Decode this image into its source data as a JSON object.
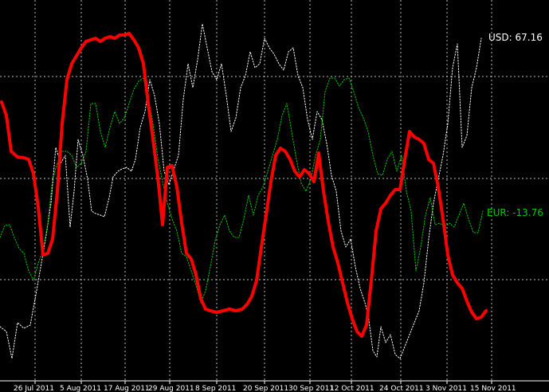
{
  "chart_data": {
    "type": "line",
    "x_tick_labels": [
      "26 Jul 2011",
      "5 Aug 2011",
      "17 Aug 2011",
      "29 Aug 2011",
      "8 Sep 2011",
      "20 Sep 2011",
      "30 Sep 2011",
      "12 Oct 2011",
      "24 Oct 2011",
      "3 Nov 2011",
      "15 Nov 2011"
    ],
    "grid": true,
    "background": "#000000",
    "series": [
      {
        "name": "USD",
        "label": "USD: 67.16",
        "last_value": 67.16,
        "color": "#ffffff",
        "style": "dotted",
        "points": [
          [
            0,
            410
          ],
          [
            8,
            416
          ],
          [
            15,
            450
          ],
          [
            22,
            405
          ],
          [
            30,
            412
          ],
          [
            38,
            408
          ],
          [
            45,
            370
          ],
          [
            52,
            330
          ],
          [
            58,
            295
          ],
          [
            64,
            255
          ],
          [
            70,
            185
          ],
          [
            76,
            205
          ],
          [
            82,
            195
          ],
          [
            88,
            285
          ],
          [
            93,
            240
          ],
          [
            98,
            175
          ],
          [
            104,
            195
          ],
          [
            110,
            225
          ],
          [
            115,
            265
          ],
          [
            120,
            268
          ],
          [
            126,
            270
          ],
          [
            131,
            272
          ],
          [
            137,
            248
          ],
          [
            142,
            222
          ],
          [
            148,
            215
          ],
          [
            153,
            212
          ],
          [
            159,
            210
          ],
          [
            165,
            215
          ],
          [
            170,
            200
          ],
          [
            176,
            160
          ],
          [
            182,
            140
          ],
          [
            188,
            100
          ],
          [
            194,
            120
          ],
          [
            200,
            155
          ],
          [
            206,
            215
          ],
          [
            212,
            232
          ],
          [
            218,
            213
          ],
          [
            224,
            195
          ],
          [
            230,
            125
          ],
          [
            236,
            80
          ],
          [
            242,
            110
          ],
          [
            248,
            75
          ],
          [
            254,
            30
          ],
          [
            260,
            60
          ],
          [
            266,
            90
          ],
          [
            272,
            100
          ],
          [
            278,
            80
          ],
          [
            284,
            120
          ],
          [
            290,
            165
          ],
          [
            296,
            148
          ],
          [
            302,
            110
          ],
          [
            308,
            95
          ],
          [
            314,
            65
          ],
          [
            320,
            85
          ],
          [
            326,
            80
          ],
          [
            332,
            48
          ],
          [
            338,
            60
          ],
          [
            344,
            68
          ],
          [
            350,
            80
          ],
          [
            356,
            88
          ],
          [
            362,
            65
          ],
          [
            368,
            60
          ],
          [
            374,
            95
          ],
          [
            380,
            110
          ],
          [
            386,
            150
          ],
          [
            392,
            175
          ],
          [
            398,
            140
          ],
          [
            404,
            150
          ],
          [
            410,
            180
          ],
          [
            416,
            220
          ],
          [
            422,
            240
          ],
          [
            428,
            290
          ],
          [
            434,
            310
          ],
          [
            440,
            300
          ],
          [
            446,
            335
          ],
          [
            452,
            362
          ],
          [
            458,
            380
          ],
          [
            462,
            395
          ],
          [
            468,
            440
          ],
          [
            473,
            448
          ],
          [
            478,
            410
          ],
          [
            484,
            430
          ],
          [
            490,
            420
          ],
          [
            496,
            445
          ],
          [
            502,
            450
          ],
          [
            508,
            435
          ],
          [
            514,
            420
          ],
          [
            520,
            405
          ],
          [
            526,
            390
          ],
          [
            532,
            355
          ],
          [
            538,
            300
          ],
          [
            544,
            255
          ],
          [
            550,
            225
          ],
          [
            556,
            195
          ],
          [
            562,
            155
          ],
          [
            568,
            85
          ],
          [
            574,
            55
          ],
          [
            580,
            185
          ],
          [
            586,
            170
          ],
          [
            592,
            110
          ],
          [
            598,
            85
          ],
          [
            604,
            48
          ]
        ]
      },
      {
        "name": "EUR",
        "label": "EUR: -13.76",
        "last_value": -13.76,
        "color": "#00c800",
        "style": "dotted",
        "points": [
          [
            0,
            298
          ],
          [
            6,
            283
          ],
          [
            12,
            282
          ],
          [
            18,
            298
          ],
          [
            24,
            312
          ],
          [
            30,
            318
          ],
          [
            36,
            340
          ],
          [
            42,
            352
          ],
          [
            48,
            330
          ],
          [
            54,
            315
          ],
          [
            60,
            280
          ],
          [
            66,
            225
          ],
          [
            72,
            205
          ],
          [
            78,
            190
          ],
          [
            84,
            190
          ],
          [
            90,
            195
          ],
          [
            96,
            210
          ],
          [
            102,
            205
          ],
          [
            108,
            190
          ],
          [
            114,
            130
          ],
          [
            120,
            130
          ],
          [
            126,
            165
          ],
          [
            132,
            185
          ],
          [
            138,
            160
          ],
          [
            144,
            140
          ],
          [
            150,
            155
          ],
          [
            156,
            148
          ],
          [
            162,
            130
          ],
          [
            168,
            112
          ],
          [
            174,
            102
          ],
          [
            180,
            98
          ],
          [
            186,
            122
          ],
          [
            192,
            155
          ],
          [
            198,
            198
          ],
          [
            204,
            228
          ],
          [
            210,
            255
          ],
          [
            216,
            275
          ],
          [
            222,
            290
          ],
          [
            228,
            318
          ],
          [
            234,
            322
          ],
          [
            240,
            340
          ],
          [
            246,
            358
          ],
          [
            252,
            380
          ],
          [
            258,
            365
          ],
          [
            264,
            335
          ],
          [
            270,
            302
          ],
          [
            276,
            282
          ],
          [
            282,
            270
          ],
          [
            288,
            290
          ],
          [
            294,
            298
          ],
          [
            300,
            298
          ],
          [
            306,
            275
          ],
          [
            312,
            245
          ],
          [
            318,
            270
          ],
          [
            324,
            245
          ],
          [
            330,
            235
          ],
          [
            336,
            215
          ],
          [
            342,
            195
          ],
          [
            348,
            175
          ],
          [
            354,
            145
          ],
          [
            360,
            130
          ],
          [
            366,
            165
          ],
          [
            372,
            200
          ],
          [
            378,
            230
          ],
          [
            384,
            240
          ],
          [
            390,
            225
          ],
          [
            396,
            195
          ],
          [
            402,
            175
          ],
          [
            408,
            115
          ],
          [
            414,
            98
          ],
          [
            420,
            98
          ],
          [
            426,
            108
          ],
          [
            432,
            100
          ],
          [
            438,
            98
          ],
          [
            444,
            115
          ],
          [
            450,
            135
          ],
          [
            456,
            148
          ],
          [
            462,
            165
          ],
          [
            468,
            195
          ],
          [
            474,
            218
          ],
          [
            480,
            220
          ],
          [
            486,
            200
          ],
          [
            492,
            190
          ],
          [
            498,
            215
          ],
          [
            504,
            195
          ],
          [
            510,
            240
          ],
          [
            516,
            265
          ],
          [
            522,
            340
          ],
          [
            528,
            310
          ],
          [
            534,
            270
          ],
          [
            540,
            248
          ],
          [
            546,
            282
          ],
          [
            552,
            280
          ],
          [
            558,
            285
          ],
          [
            564,
            280
          ],
          [
            570,
            285
          ],
          [
            576,
            270
          ],
          [
            582,
            255
          ],
          [
            588,
            275
          ],
          [
            594,
            292
          ],
          [
            600,
            292
          ],
          [
            606,
            265
          ]
        ]
      },
      {
        "name": "",
        "color": "#ff0000",
        "style": "solid",
        "points": [
          [
            2,
            128
          ],
          [
            8,
            145
          ],
          [
            14,
            190
          ],
          [
            22,
            197
          ],
          [
            30,
            198
          ],
          [
            36,
            200
          ],
          [
            42,
            218
          ],
          [
            48,
            260
          ],
          [
            54,
            320
          ],
          [
            60,
            318
          ],
          [
            66,
            300
          ],
          [
            72,
            240
          ],
          [
            78,
            155
          ],
          [
            84,
            100
          ],
          [
            90,
            80
          ],
          [
            96,
            70
          ],
          [
            102,
            60
          ],
          [
            108,
            52
          ],
          [
            114,
            50
          ],
          [
            120,
            48
          ],
          [
            126,
            52
          ],
          [
            132,
            48
          ],
          [
            138,
            46
          ],
          [
            144,
            48
          ],
          [
            150,
            44
          ],
          [
            156,
            44
          ],
          [
            162,
            42
          ],
          [
            168,
            50
          ],
          [
            174,
            60
          ],
          [
            180,
            80
          ],
          [
            186,
            130
          ],
          [
            192,
            175
          ],
          [
            198,
            222
          ],
          [
            204,
            282
          ],
          [
            210,
            210
          ],
          [
            216,
            208
          ],
          [
            222,
            235
          ],
          [
            228,
            280
          ],
          [
            234,
            318
          ],
          [
            240,
            325
          ],
          [
            246,
            345
          ],
          [
            252,
            375
          ],
          [
            258,
            388
          ],
          [
            264,
            390
          ],
          [
            272,
            392
          ],
          [
            280,
            390
          ],
          [
            288,
            388
          ],
          [
            296,
            390
          ],
          [
            304,
            388
          ],
          [
            310,
            382
          ],
          [
            316,
            372
          ],
          [
            322,
            352
          ],
          [
            328,
            310
          ],
          [
            334,
            270
          ],
          [
            340,
            228
          ],
          [
            346,
            195
          ],
          [
            352,
            186
          ],
          [
            358,
            190
          ],
          [
            364,
            200
          ],
          [
            370,
            215
          ],
          [
            376,
            222
          ],
          [
            382,
            213
          ],
          [
            388,
            218
          ],
          [
            394,
            228
          ],
          [
            400,
            192
          ],
          [
            406,
            240
          ],
          [
            412,
            278
          ],
          [
            418,
            310
          ],
          [
            424,
            330
          ],
          [
            430,
            355
          ],
          [
            436,
            380
          ],
          [
            442,
            400
          ],
          [
            448,
            416
          ],
          [
            454,
            422
          ],
          [
            460,
            408
          ],
          [
            466,
            352
          ],
          [
            472,
            290
          ],
          [
            478,
            262
          ],
          [
            484,
            255
          ],
          [
            490,
            245
          ],
          [
            496,
            238
          ],
          [
            502,
            238
          ],
          [
            508,
            200
          ],
          [
            514,
            165
          ],
          [
            520,
            172
          ],
          [
            526,
            175
          ],
          [
            532,
            180
          ],
          [
            538,
            200
          ],
          [
            544,
            205
          ],
          [
            550,
            235
          ],
          [
            556,
            275
          ],
          [
            562,
            320
          ],
          [
            568,
            345
          ],
          [
            574,
            355
          ],
          [
            580,
            362
          ],
          [
            586,
            378
          ],
          [
            592,
            392
          ],
          [
            598,
            400
          ],
          [
            604,
            398
          ],
          [
            610,
            390
          ]
        ]
      }
    ]
  }
}
